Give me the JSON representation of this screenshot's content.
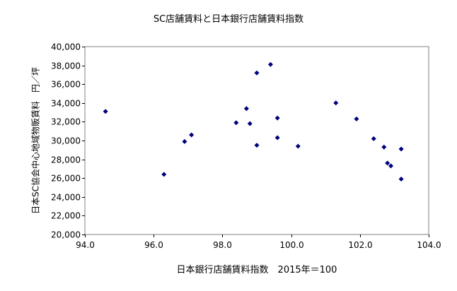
{
  "chart_data": {
    "type": "scatter",
    "title": "SC店舗賃料と日本銀行店舗賃料指数",
    "xlabel": "日本銀行店舗賃料指数　2015年＝100",
    "ylabel": "日本SC協会中心地域物販賃料　円／坪",
    "xlim": [
      94.0,
      104.0
    ],
    "ylim": [
      20000,
      40000
    ],
    "x_ticks": [
      94.0,
      96.0,
      98.0,
      100.0,
      102.0,
      104.0
    ],
    "x_tick_labels": [
      "94.0",
      "96.0",
      "98.0",
      "100.0",
      "102.0",
      "104.0"
    ],
    "y_ticks": [
      20000,
      22000,
      24000,
      26000,
      28000,
      30000,
      32000,
      34000,
      36000,
      38000,
      40000
    ],
    "y_tick_labels": [
      "20,000",
      "22,000",
      "24,000",
      "26,000",
      "28,000",
      "30,000",
      "32,000",
      "34,000",
      "36,000",
      "38,000",
      "40,000"
    ],
    "grid": false,
    "marker_color": "#00007f",
    "points": [
      {
        "x": 94.6,
        "y": 33100
      },
      {
        "x": 96.3,
        "y": 26400
      },
      {
        "x": 96.9,
        "y": 29900
      },
      {
        "x": 97.1,
        "y": 30600
      },
      {
        "x": 98.4,
        "y": 31900
      },
      {
        "x": 98.7,
        "y": 33400
      },
      {
        "x": 98.8,
        "y": 31800
      },
      {
        "x": 99.0,
        "y": 37200
      },
      {
        "x": 99.0,
        "y": 29500
      },
      {
        "x": 99.4,
        "y": 38100
      },
      {
        "x": 99.6,
        "y": 32400
      },
      {
        "x": 99.6,
        "y": 30300
      },
      {
        "x": 100.2,
        "y": 29400
      },
      {
        "x": 101.3,
        "y": 34000
      },
      {
        "x": 101.9,
        "y": 32300
      },
      {
        "x": 102.4,
        "y": 30200
      },
      {
        "x": 102.7,
        "y": 29300
      },
      {
        "x": 102.8,
        "y": 27600
      },
      {
        "x": 102.9,
        "y": 27300
      },
      {
        "x": 103.2,
        "y": 29100
      },
      {
        "x": 103.2,
        "y": 25900
      }
    ]
  }
}
